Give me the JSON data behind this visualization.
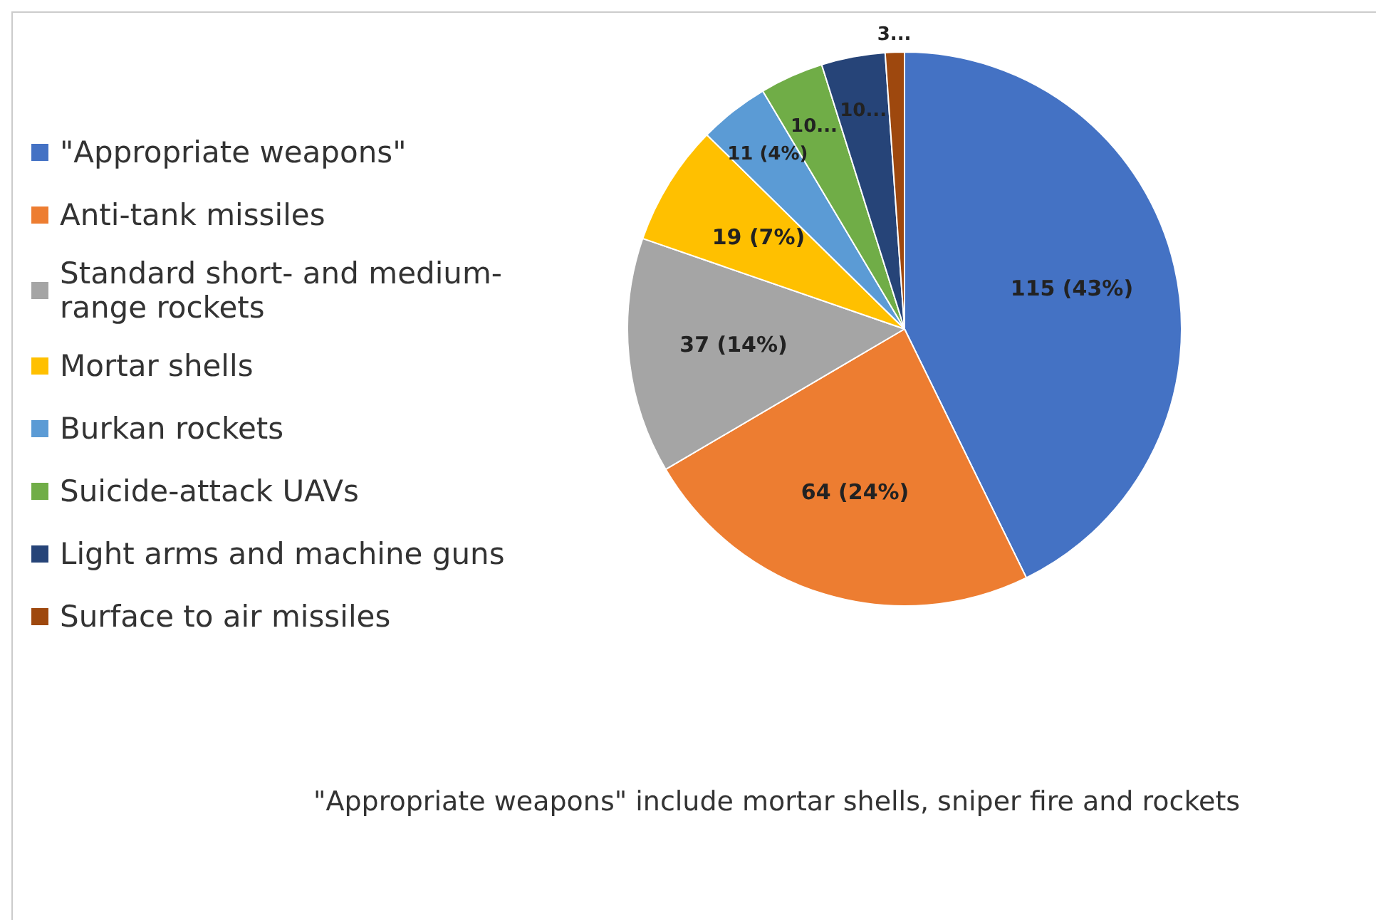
{
  "chart_data": {
    "type": "pie",
    "categories": [
      "\"Appropriate weapons\"",
      "Anti-tank missiles",
      "Standard short- and medium-range rockets",
      "Mortar shells",
      "Burkan rockets",
      "Suicide-attack UAVs",
      "Light arms and machine guns",
      "Surface to air missiles"
    ],
    "values": [
      115,
      64,
      37,
      19,
      11,
      10,
      10,
      3
    ],
    "colors": [
      "#4472c4",
      "#ed7d31",
      "#a5a5a5",
      "#ffc000",
      "#5b9bd5",
      "#70ad47",
      "#264478",
      "#9e480e"
    ],
    "value_labels": [
      "115 (43%)",
      "64 (24%)",
      "37 (14%)",
      "19 (7%)",
      "11 (4%)",
      "10...",
      "10...",
      "3..."
    ],
    "legend": "left",
    "annotations": [
      "\"Appropriate weapons\" include mortar shells, sniper fire and rockets"
    ]
  }
}
